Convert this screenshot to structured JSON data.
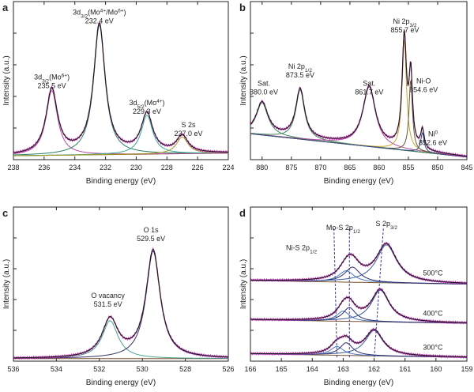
{
  "colors": {
    "envelope": "#1c1c1c",
    "background": "#7a4f2a",
    "raw": "#d02fbf",
    "mo4_52": "#3aa89a",
    "mo4_32": "#2f7f5f",
    "mo6": "#b64aa3",
    "s2s": "#a49a21",
    "ni_main": "#c9a62c",
    "ni_o": "#6b5a3a",
    "ni0": "#2d4e8a",
    "sat1": "#3a8a5a",
    "sat2": "#b64aa3",
    "sat3": "#5c7f3a",
    "o_lattice": "#333366",
    "o_vac": "#48a390",
    "s32": "#3a5a9a",
    "s12": "#2a2a6a",
    "nis": "#4a7abf",
    "dashed": "#3a3aa0"
  },
  "chart_data": [
    {
      "id": "a",
      "type": "line",
      "label": "a",
      "xlabel": "Binding energy (eV)",
      "ylabel": "Intensity (a.u.)",
      "xlim": [
        238,
        224
      ],
      "xticks": [
        238,
        236,
        234,
        232,
        230,
        228,
        226,
        224
      ],
      "background": {
        "type": "linear",
        "y_start": 0.03,
        "y_end": 0.05
      },
      "peaks": [
        {
          "center": 235.5,
          "height": 0.5,
          "width": 0.45,
          "color": "mo6"
        },
        {
          "center": 232.4,
          "height": 1.0,
          "width": 0.45,
          "color": "mo4_32"
        },
        {
          "center": 229.3,
          "height": 0.3,
          "width": 0.45,
          "color": "mo4_52"
        },
        {
          "center": 227.0,
          "height": 0.13,
          "width": 0.45,
          "color": "s2s"
        }
      ],
      "annotations": [
        {
          "lines": [
            "3d3/2(Mo6+)",
            "235.5 eV"
          ],
          "x": 235.5,
          "y": 0.62
        },
        {
          "lines": [
            "3d3/2(Mo4+/Mo6+)",
            "232.4 eV"
          ],
          "x": 232.4,
          "y": 1.12
        },
        {
          "lines": [
            "3d5/2(Mo4+)",
            "229.3 eV"
          ],
          "x": 229.3,
          "y": 0.42
        },
        {
          "lines": [
            "S 2s",
            "227.0 eV"
          ],
          "x": 226.6,
          "y": 0.25
        }
      ]
    },
    {
      "id": "b",
      "type": "line",
      "label": "b",
      "xlabel": "Binding energy (eV)",
      "ylabel": "Intensity (a.u.)",
      "xlim": [
        882,
        845
      ],
      "xticks": [
        880,
        875,
        870,
        865,
        860,
        855,
        850,
        845
      ],
      "background": {
        "type": "linear",
        "y_start": 0.2,
        "y_end": 0.02
      },
      "peaks": [
        {
          "center": 880.0,
          "height": 0.25,
          "width": 1.2,
          "color": "sat1"
        },
        {
          "center": 873.5,
          "height": 0.38,
          "width": 0.9,
          "color": "sat1"
        },
        {
          "center": 861.7,
          "height": 0.46,
          "width": 1.3,
          "color": "sat2"
        },
        {
          "center": 855.7,
          "height": 0.85,
          "width": 0.45,
          "color": "ni_main"
        },
        {
          "center": 854.6,
          "height": 0.55,
          "width": 0.35,
          "color": "ni_o"
        },
        {
          "center": 852.6,
          "height": 0.15,
          "width": 0.35,
          "color": "ni0"
        }
      ],
      "annotations": [
        {
          "lines": [
            "Sat.",
            "880.0 eV"
          ],
          "x": 879.7,
          "y": 0.57
        },
        {
          "lines": [
            "Ni 2p1/2",
            "873.5 eV"
          ],
          "x": 873.5,
          "y": 0.7
        },
        {
          "lines": [
            "Sat.",
            "861.7 eV"
          ],
          "x": 861.7,
          "y": 0.57
        },
        {
          "lines": [
            "Ni 2p3/2",
            "855.7 eV"
          ],
          "x": 855.6,
          "y": 1.05
        },
        {
          "lines": [
            "Ni-O",
            "854.6 eV"
          ],
          "x": 852.4,
          "y": 0.59
        },
        {
          "lines": [
            "Ni0",
            "852.6 eV"
          ],
          "x": 850.8,
          "y": 0.18
        }
      ]
    },
    {
      "id": "c",
      "type": "line",
      "label": "c",
      "xlabel": "Binding energy (eV)",
      "ylabel": "Intensity (a.u.)",
      "xlim": [
        536,
        526
      ],
      "xticks": [
        536,
        534,
        532,
        530,
        528,
        526
      ],
      "background": {
        "type": "linear",
        "y_start": 0.02,
        "y_end": 0.02
      },
      "peaks": [
        {
          "center": 531.5,
          "height": 0.3,
          "width": 0.45,
          "color": "o_vac"
        },
        {
          "center": 529.5,
          "height": 0.85,
          "width": 0.4,
          "color": "o_lattice"
        }
      ],
      "annotations": [
        {
          "lines": [
            "O vacancy",
            "531.5 eV"
          ],
          "x": 531.6,
          "y": 0.5
        },
        {
          "lines": [
            "O 1s",
            "529.5 eV"
          ],
          "x": 529.6,
          "y": 1.02
        }
      ]
    },
    {
      "id": "d",
      "type": "line",
      "label": "d",
      "xlabel": "Binding energy (eV)",
      "ylabel": "Intensity (a.u.)",
      "xlim": [
        166,
        159
      ],
      "xticks": [
        166,
        165,
        164,
        163,
        162,
        161,
        160,
        159
      ],
      "stacks": [
        {
          "name": "300°C",
          "offset": 0.02,
          "peaks": [
            {
              "center": 163.2,
              "height": 0.07,
              "width": 0.25,
              "color": "nis"
            },
            {
              "center": 162.9,
              "height": 0.1,
              "width": 0.25,
              "color": "s12"
            },
            {
              "center": 162.0,
              "height": 0.2,
              "width": 0.35,
              "color": "s32"
            }
          ]
        },
        {
          "name": "400°C",
          "offset": 0.29,
          "peaks": [
            {
              "center": 163.0,
              "height": 0.08,
              "width": 0.25,
              "color": "nis"
            },
            {
              "center": 162.8,
              "height": 0.11,
              "width": 0.25,
              "color": "s12"
            },
            {
              "center": 161.8,
              "height": 0.25,
              "width": 0.35,
              "color": "s32"
            }
          ]
        },
        {
          "name": "500°C",
          "offset": 0.6,
          "peaks": [
            {
              "center": 162.9,
              "height": 0.09,
              "width": 0.3,
              "color": "nis"
            },
            {
              "center": 162.7,
              "height": 0.12,
              "width": 0.3,
              "color": "s12"
            },
            {
              "center": 161.6,
              "height": 0.3,
              "width": 0.4,
              "color": "s32"
            }
          ]
        }
      ],
      "dashed_lines": [
        {
          "x_top": 163.3,
          "x_bottom": 163.2
        },
        {
          "x_top": 162.8,
          "x_bottom": 162.8
        },
        {
          "x_top": 161.7,
          "x_bottom": 162.0
        }
      ],
      "annotations": [
        {
          "lines": [
            "S 2p3/2"
          ],
          "x": 161.6,
          "y": 1.07
        },
        {
          "lines": [
            "Mo-S 2p1/2"
          ],
          "x": 163.0,
          "y": 1.04
        },
        {
          "lines": [
            "Ni-S 2p1/2"
          ],
          "x": 164.35,
          "y": 0.88
        }
      ],
      "stack_labels": [
        {
          "text": "500°C",
          "x": 160.1,
          "y": 0.68
        },
        {
          "text": "400°C",
          "x": 160.1,
          "y": 0.36
        },
        {
          "text": "300°C",
          "x": 160.1,
          "y": 0.09
        }
      ]
    }
  ]
}
